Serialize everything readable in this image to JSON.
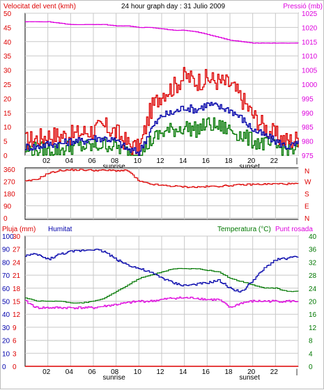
{
  "header": {
    "wind_label": "Velocitat del vent (kmh)",
    "title": "24 hour graph day : 31 Julio 2009",
    "pressure_label": "Pressió (mb)"
  },
  "bottom_header": {
    "rain_label": "Pluja (mm)",
    "humidity_label": "Humitat",
    "temperature_label": "Temperatura (°C)",
    "dewpoint_label": "Punt rosada"
  },
  "x_axis": {
    "ticks": [
      "02",
      "04",
      "06",
      "08",
      "10",
      "12",
      "14",
      "16",
      "18",
      "20",
      "22",
      "|"
    ],
    "sunrise_label": "sunrise",
    "sunset_label": "sunset"
  },
  "colors": {
    "red": "#dd0000",
    "blue": "#0000aa",
    "green": "#007700",
    "magenta": "#dd00dd",
    "grid": "#c8c8c8"
  },
  "chart_data": [
    {
      "type": "line",
      "title": "24 hour graph day : 31 Julio 2009",
      "ylabel": "Velocitat del vent (kmh)",
      "ylim": [
        0,
        50
      ],
      "yticks": [
        0,
        5,
        10,
        15,
        20,
        25,
        30,
        35,
        40,
        45,
        50
      ],
      "y2label": "Pressió (mb)",
      "y2lim": [
        975,
        1025
      ],
      "y2ticks": [
        975,
        980,
        985,
        990,
        995,
        1000,
        1005,
        1010,
        1015,
        1020,
        1025
      ],
      "x_hours": [
        0,
        1,
        2,
        3,
        4,
        5,
        6,
        7,
        8,
        9,
        10,
        11,
        12,
        13,
        14,
        15,
        16,
        17,
        18,
        19,
        20,
        21,
        22,
        23,
        24
      ],
      "series": [
        {
          "values": [
            5,
            6,
            7,
            7,
            7,
            8,
            9,
            10,
            8,
            4,
            2,
            16,
            22,
            24,
            28,
            26,
            27,
            26,
            25,
            20,
            14,
            10,
            7,
            5,
            6
          ]
        },
        {
          "values": [
            3,
            3,
            4,
            4,
            5,
            5,
            6,
            6,
            5,
            2,
            1,
            9,
            14,
            15,
            17,
            16,
            18,
            17,
            16,
            13,
            9,
            7,
            5,
            3,
            4
          ]
        },
        {
          "values": [
            2,
            2,
            2,
            2,
            3,
            3,
            3,
            4,
            3,
            1,
            0,
            5,
            8,
            9,
            10,
            9,
            11,
            10,
            9,
            7,
            5,
            4,
            3,
            2,
            2
          ]
        },
        {
          "values": [
            1022,
            1022,
            1022,
            1021.5,
            1021,
            1021,
            1021,
            1021,
            1020.5,
            1020.5,
            1020,
            1020,
            1019.5,
            1019,
            1019,
            1018.5,
            1017.5,
            1016.5,
            1015.5,
            1015,
            1014.5,
            1014.5,
            1014.5,
            1014.5,
            1014.5
          ]
        }
      ]
    },
    {
      "type": "line",
      "ylim": [
        0,
        360
      ],
      "yticks": [
        0,
        90,
        180,
        270,
        360
      ],
      "y2ticks": [
        "W",
        "S",
        "E",
        "N"
      ],
      "x_hours": [
        0,
        1,
        2,
        3,
        4,
        5,
        6,
        7,
        8,
        9,
        10,
        11,
        12,
        13,
        14,
        15,
        16,
        17,
        18,
        19,
        20,
        21,
        22,
        23,
        24
      ],
      "series": [
        {
          "values": [
            270,
            285,
            330,
            350,
            355,
            355,
            352,
            352,
            350,
            350,
            270,
            250,
            240,
            235,
            230,
            228,
            232,
            235,
            240,
            245,
            248,
            250,
            252,
            252,
            252
          ]
        }
      ]
    },
    {
      "type": "line",
      "ylabel": "Pluja (mm)",
      "ylim": [
        0,
        30
      ],
      "yticks": [
        0,
        3,
        6,
        9,
        12,
        15,
        18,
        21,
        24,
        27,
        30
      ],
      "humidity_ticks": [
        0,
        10,
        20,
        30,
        40,
        50,
        60,
        70,
        80,
        90,
        100
      ],
      "y2label": "Temperatura (°C)",
      "y2lim": [
        0,
        40
      ],
      "y2ticks": [
        0,
        4,
        8,
        12,
        16,
        20,
        24,
        28,
        32,
        36,
        40
      ],
      "x_hours": [
        0,
        1,
        2,
        3,
        4,
        5,
        6,
        7,
        8,
        9,
        10,
        11,
        12,
        13,
        14,
        15,
        16,
        17,
        18,
        19,
        20,
        21,
        22,
        23,
        24
      ],
      "series": [
        {
          "name": "Pluja (mm)",
          "values": [
            0,
            0,
            0,
            0,
            0,
            0,
            0,
            0,
            0,
            0,
            0,
            0,
            0,
            0,
            0,
            0,
            0,
            0,
            0,
            0,
            0,
            0,
            0,
            0,
            0
          ]
        },
        {
          "name": "Humitat",
          "values": [
            85,
            86,
            82,
            86,
            88,
            89,
            90,
            88,
            82,
            78,
            75,
            72,
            68,
            64,
            62,
            63,
            64,
            66,
            60,
            57,
            66,
            75,
            82,
            83,
            84
          ]
        },
        {
          "name": "Temperatura (°C)",
          "values": [
            21,
            20,
            20,
            20,
            19.5,
            19.5,
            20,
            21,
            23,
            25,
            27,
            28,
            29,
            30,
            30,
            30,
            29.5,
            29,
            27,
            26,
            25,
            24,
            24,
            23,
            23
          ]
        },
        {
          "name": "Punt rosada",
          "values": [
            20,
            18,
            18,
            18,
            18,
            18,
            18,
            18.5,
            19,
            19.5,
            20,
            20,
            20.5,
            21,
            21,
            21,
            20.5,
            20.5,
            18,
            19.5,
            20,
            20,
            20,
            20,
            20
          ]
        }
      ]
    }
  ]
}
